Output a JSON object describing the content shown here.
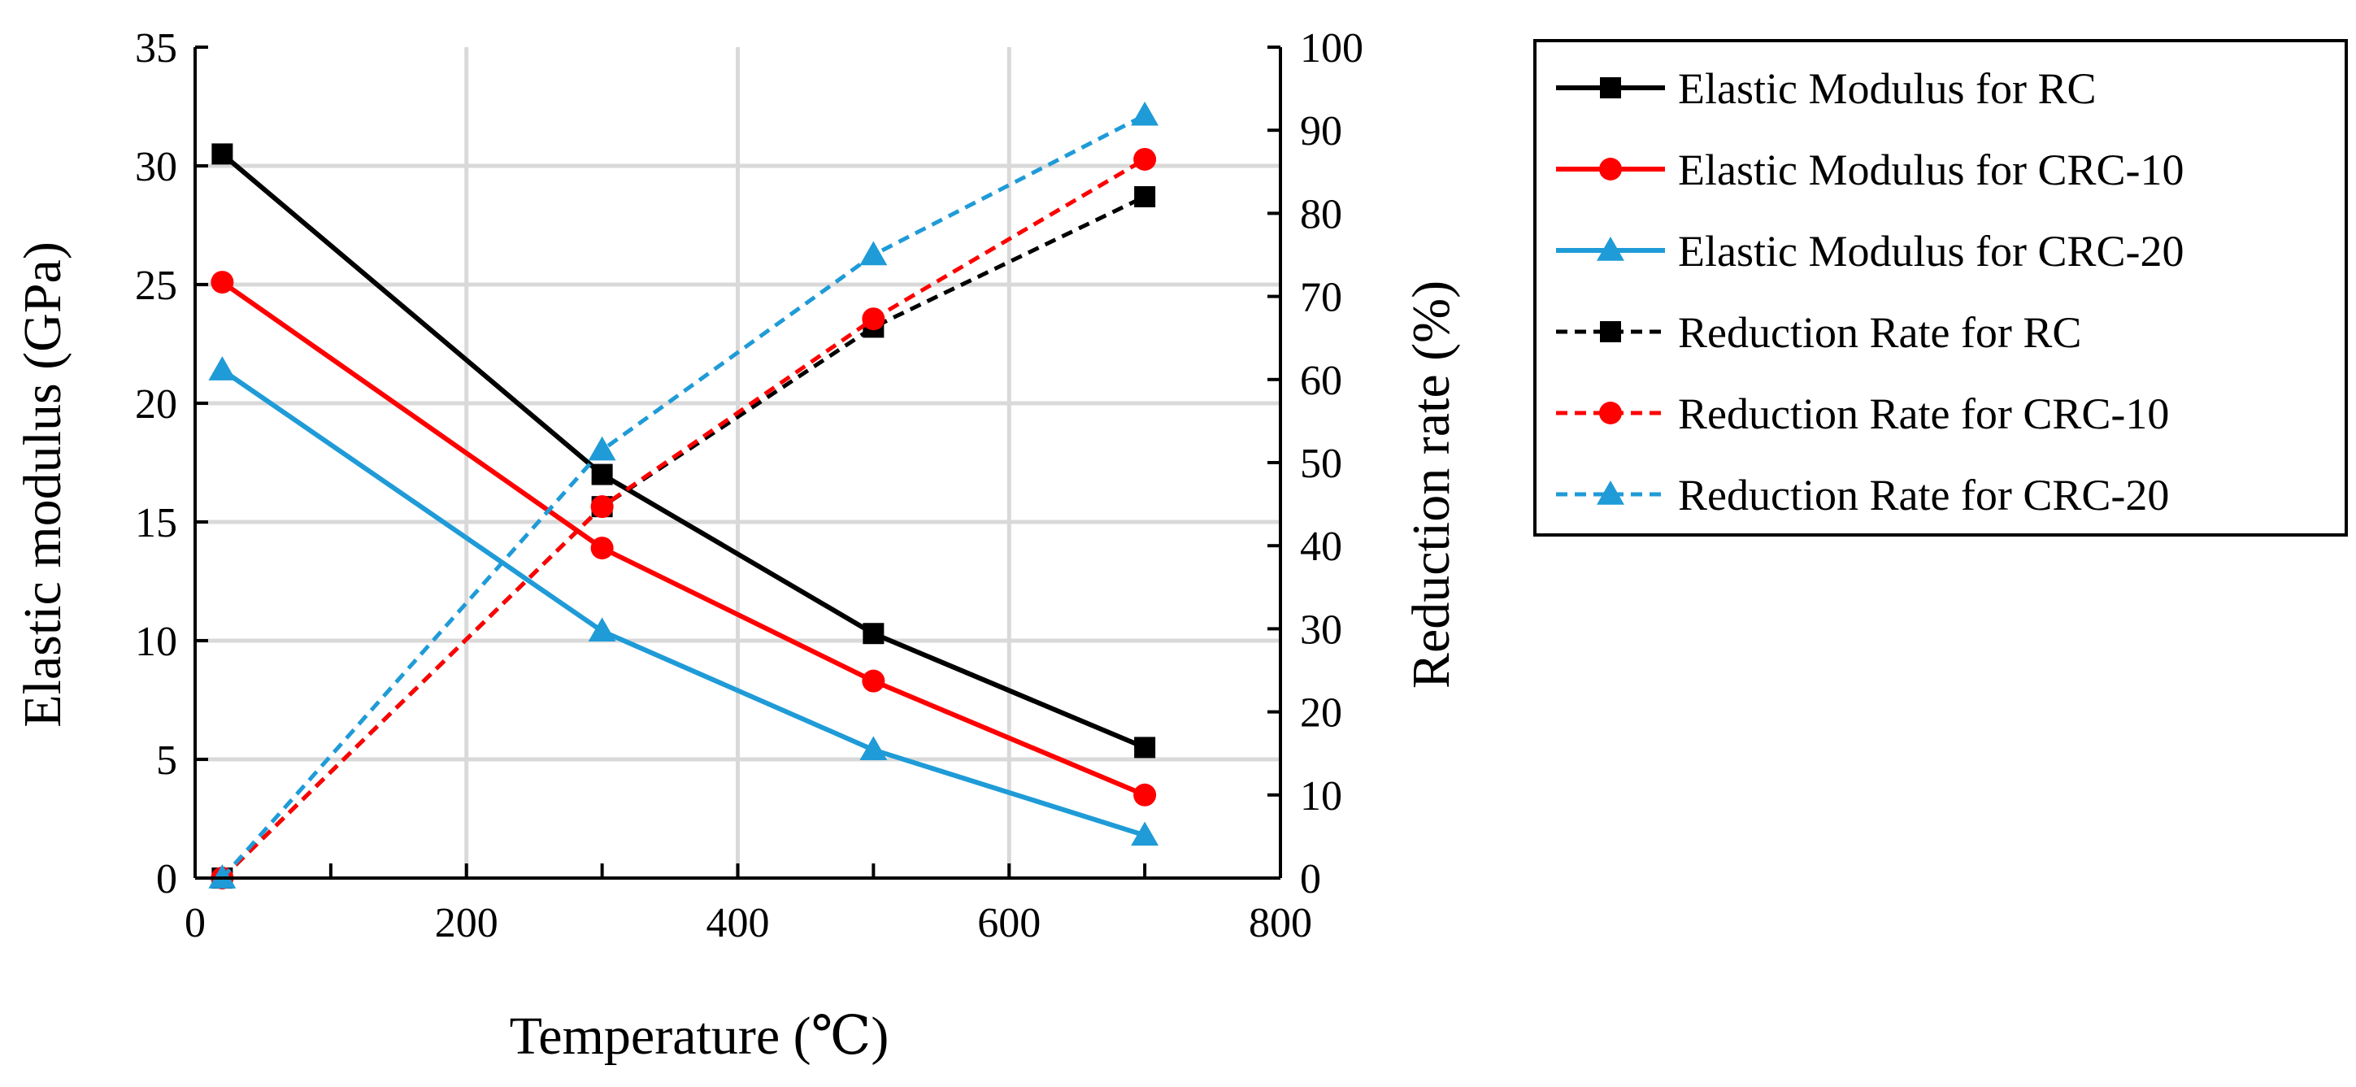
{
  "chart_data": {
    "type": "line",
    "title": "",
    "xlabel": "Temperature (℃)",
    "ylabel": "Elastic modulus (GPa)",
    "y2label": "Reduction rate (%)",
    "xlim": [
      0,
      800
    ],
    "ylim": [
      0,
      35
    ],
    "y2lim": [
      0,
      100
    ],
    "x_ticks": [
      0,
      200,
      400,
      600,
      800
    ],
    "y_ticks": [
      0,
      5,
      10,
      15,
      20,
      25,
      30,
      35
    ],
    "y2_ticks": [
      0,
      10,
      20,
      30,
      40,
      50,
      60,
      70,
      80,
      90,
      100
    ],
    "grid": true,
    "legend_position": "right",
    "x": [
      20,
      300,
      500,
      700
    ],
    "series": [
      {
        "name": "Elastic Modulus for RC",
        "axis": "left",
        "color": "#000000",
        "dash": false,
        "marker": "square",
        "values": [
          30.5,
          17.0,
          10.3,
          5.5
        ]
      },
      {
        "name": "Elastic Modulus for CRC-10",
        "axis": "left",
        "color": "#ff0000",
        "dash": false,
        "marker": "circle",
        "values": [
          25.1,
          13.9,
          8.3,
          3.5
        ]
      },
      {
        "name": "Elastic Modulus for CRC-20",
        "axis": "left",
        "color": "#1f9bd7",
        "dash": false,
        "marker": "triangle",
        "values": [
          21.4,
          10.4,
          5.4,
          1.8
        ]
      },
      {
        "name": "Reduction Rate for RC",
        "axis": "right",
        "color": "#000000",
        "dash": true,
        "marker": "square",
        "values": [
          0,
          44.7,
          66.3,
          82.0
        ]
      },
      {
        "name": "Reduction Rate for CRC-10",
        "axis": "right",
        "color": "#ff0000",
        "dash": true,
        "marker": "circle",
        "values": [
          0,
          44.7,
          67.3,
          86.5
        ]
      },
      {
        "name": "Reduction Rate for CRC-20",
        "axis": "right",
        "color": "#1f9bd7",
        "dash": true,
        "marker": "triangle",
        "values": [
          0,
          51.5,
          75.0,
          91.8
        ]
      }
    ]
  }
}
